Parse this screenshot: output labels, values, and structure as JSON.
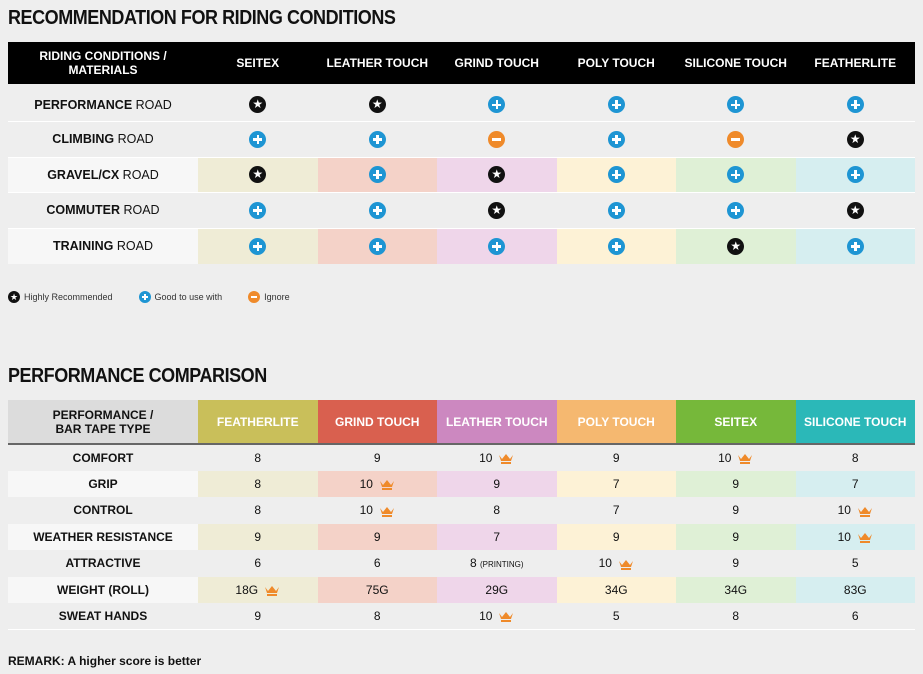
{
  "section1": {
    "title": "RECOMMENDATION FOR RIDING CONDITIONS",
    "corner": "RIDING CONDITIONS / MATERIALS",
    "columns": [
      "SEITEX",
      "LEATHER TOUCH",
      "GRIND TOUCH",
      "POLY TOUCH",
      "SILICONE TOUCH",
      "FEATHERLITE"
    ],
    "rows": [
      {
        "bold": "PERFORMANCE",
        "rest": " ROAD",
        "tint": false,
        "values": [
          "star",
          "star",
          "plus",
          "plus",
          "plus",
          "plus"
        ]
      },
      {
        "bold": "CLIMBING",
        "rest": " ROAD",
        "tint": false,
        "values": [
          "plus",
          "plus",
          "minus",
          "plus",
          "minus",
          "star"
        ]
      },
      {
        "bold": "GRAVEL/CX",
        "rest": " ROAD",
        "tint": true,
        "values": [
          "star",
          "plus",
          "star",
          "plus",
          "plus",
          "plus"
        ]
      },
      {
        "bold": "COMMUTER",
        "rest": " ROAD",
        "tint": false,
        "values": [
          "plus",
          "plus",
          "star",
          "plus",
          "plus",
          "star"
        ]
      },
      {
        "bold": "TRAINING",
        "rest": " ROAD",
        "tint": true,
        "values": [
          "plus",
          "plus",
          "plus",
          "plus",
          "star",
          "plus"
        ]
      }
    ],
    "legend": {
      "star": "Highly Recommended",
      "plus": "Good to use with",
      "minus": "Ignore"
    }
  },
  "section2": {
    "title": "PERFORMANCE COMPARISON",
    "corner": "PERFORMANCE / BAR TAPE TYPE",
    "columns": [
      {
        "label": "FEATHERLITE",
        "color": "#c9bf5a"
      },
      {
        "label": "GRIND TOUCH",
        "color": "#d9604f"
      },
      {
        "label": "LEATHER TOUCH",
        "color": "#cc88c0"
      },
      {
        "label": "POLY TOUCH",
        "color": "#f5b870"
      },
      {
        "label": "SEITEX",
        "color": "#76b83a"
      },
      {
        "label": "SILICONE TOUCH",
        "color": "#2bb8b8"
      }
    ],
    "rows": [
      {
        "label": "COMFORT",
        "tint": false,
        "values": [
          {
            "v": "8"
          },
          {
            "v": "9"
          },
          {
            "v": "10",
            "best": true
          },
          {
            "v": "9"
          },
          {
            "v": "10",
            "best": true
          },
          {
            "v": "8"
          }
        ]
      },
      {
        "label": "GRIP",
        "tint": true,
        "values": [
          {
            "v": "8"
          },
          {
            "v": "10",
            "best": true
          },
          {
            "v": "9"
          },
          {
            "v": "7"
          },
          {
            "v": "9"
          },
          {
            "v": "7"
          }
        ]
      },
      {
        "label": "CONTROL",
        "tint": false,
        "values": [
          {
            "v": "8"
          },
          {
            "v": "10",
            "best": true
          },
          {
            "v": "8"
          },
          {
            "v": "7"
          },
          {
            "v": "9"
          },
          {
            "v": "10",
            "best": true
          }
        ]
      },
      {
        "label": "WEATHER RESISTANCE",
        "tint": true,
        "values": [
          {
            "v": "9"
          },
          {
            "v": "9"
          },
          {
            "v": "7"
          },
          {
            "v": "9"
          },
          {
            "v": "9"
          },
          {
            "v": "10",
            "best": true
          }
        ]
      },
      {
        "label": "ATTRACTIVE",
        "tint": false,
        "values": [
          {
            "v": "6"
          },
          {
            "v": "6"
          },
          {
            "v": "8",
            "note": "(PRINTING)"
          },
          {
            "v": "10",
            "best": true
          },
          {
            "v": "9"
          },
          {
            "v": "5"
          }
        ]
      },
      {
        "label": "WEIGHT (ROLL)",
        "tint": true,
        "values": [
          {
            "v": "18G",
            "best": true
          },
          {
            "v": "75G"
          },
          {
            "v": "29G"
          },
          {
            "v": "34G"
          },
          {
            "v": "34G"
          },
          {
            "v": "83G"
          }
        ]
      },
      {
        "label": "SWEAT HANDS",
        "tint": false,
        "values": [
          {
            "v": "9"
          },
          {
            "v": "8"
          },
          {
            "v": "10",
            "best": true
          },
          {
            "v": "5"
          },
          {
            "v": "8"
          },
          {
            "v": "6"
          }
        ]
      }
    ],
    "remark": "REMARK: A higher score is better"
  },
  "colors": {
    "crown": "#ef8a2a",
    "plus": "#1e95d3",
    "star": "#111111",
    "minus": "#ef8a2a"
  }
}
